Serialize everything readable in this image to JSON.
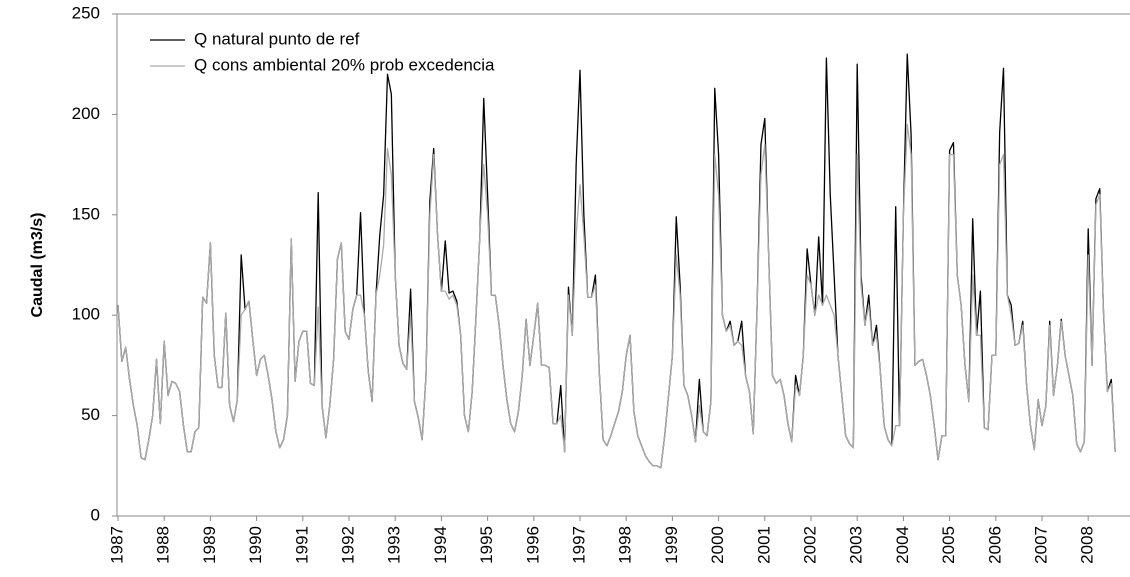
{
  "chart_data": {
    "type": "line",
    "y_label": "Caudal (m3/s)",
    "categories": [
      "1987",
      null,
      null,
      null,
      null,
      null,
      null,
      null,
      null,
      null,
      null,
      null,
      "1988",
      null,
      null,
      null,
      null,
      null,
      null,
      null,
      null,
      null,
      null,
      null,
      "1989",
      null,
      null,
      null,
      null,
      null,
      null,
      null,
      null,
      null,
      null,
      null,
      "1990",
      null,
      null,
      null,
      null,
      null,
      null,
      null,
      null,
      null,
      null,
      null,
      "1991",
      null,
      null,
      null,
      null,
      null,
      null,
      null,
      null,
      null,
      null,
      null,
      "1992",
      null,
      null,
      null,
      null,
      null,
      null,
      null,
      null,
      null,
      null,
      null,
      "1993",
      null,
      null,
      null,
      null,
      null,
      null,
      null,
      null,
      null,
      null,
      null,
      "1994",
      null,
      null,
      null,
      null,
      null,
      null,
      null,
      null,
      null,
      null,
      null,
      "1995",
      null,
      null,
      null,
      null,
      null,
      null,
      null,
      null,
      null,
      null,
      null,
      "1996",
      null,
      null,
      null,
      null,
      null,
      null,
      null,
      null,
      null,
      null,
      null,
      "1997",
      null,
      null,
      null,
      null,
      null,
      null,
      null,
      null,
      null,
      null,
      null,
      "1998",
      null,
      null,
      null,
      null,
      null,
      null,
      null,
      null,
      null,
      null,
      null,
      "1999",
      null,
      null,
      null,
      null,
      null,
      null,
      null,
      null,
      null,
      null,
      null,
      "2000",
      null,
      null,
      null,
      null,
      null,
      null,
      null,
      null,
      null,
      null,
      null,
      "2001",
      null,
      null,
      null,
      null,
      null,
      null,
      null,
      null,
      null,
      null,
      null,
      "2002",
      null,
      null,
      null,
      null,
      null,
      null,
      null,
      null,
      null,
      null,
      null,
      "2003",
      null,
      null,
      null,
      null,
      null,
      null,
      null,
      null,
      null,
      null,
      null,
      "2004",
      null,
      null,
      null,
      null,
      null,
      null,
      null,
      null,
      null,
      null,
      null,
      "2005",
      null,
      null,
      null,
      null,
      null,
      null,
      null,
      null,
      null,
      null,
      null,
      "2006",
      null,
      null,
      null,
      null,
      null,
      null,
      null,
      null,
      null,
      null,
      null,
      "2007",
      null,
      null,
      null,
      null,
      null,
      null,
      null,
      null,
      null,
      null,
      null,
      "2008",
      null,
      null,
      null,
      null,
      null,
      null,
      null
    ],
    "series": [
      {
        "name": "Q natural punto de ref",
        "color": "#000000",
        "values": [
          105,
          77,
          84,
          68,
          55,
          45,
          29,
          28,
          38,
          50,
          78,
          46,
          87,
          60,
          67,
          66,
          62,
          45,
          32,
          32,
          42,
          44,
          109,
          106,
          136,
          80,
          64,
          64,
          101,
          55,
          47,
          58,
          130,
          103,
          107,
          88,
          70,
          78,
          80,
          70,
          58,
          42,
          34,
          38,
          50,
          138,
          67,
          87,
          92,
          92,
          66,
          65,
          161,
          55,
          39,
          55,
          78,
          128,
          136,
          92,
          88,
          103,
          110,
          151,
          100,
          72,
          57,
          110,
          140,
          160,
          220,
          210,
          120,
          85,
          76,
          73,
          113,
          57,
          49,
          38,
          70,
          157,
          183,
          140,
          112,
          137,
          111,
          112,
          107,
          90,
          50,
          42,
          62,
          100,
          140,
          208,
          160,
          110,
          110,
          95,
          75,
          58,
          46,
          42,
          52,
          70,
          98,
          75,
          90,
          106,
          75,
          75,
          74,
          46,
          46,
          65,
          32,
          114,
          90,
          175,
          222,
          150,
          109,
          109,
          120,
          72,
          38,
          35,
          40,
          46,
          52,
          62,
          80,
          90,
          52,
          40,
          35,
          30,
          27,
          25,
          25,
          24,
          40,
          60,
          80,
          149,
          115,
          65,
          60,
          50,
          37,
          68,
          42,
          40,
          57,
          213,
          180,
          100,
          92,
          97,
          85,
          87,
          97,
          70,
          62,
          41,
          105,
          185,
          198,
          130,
          70,
          66,
          68,
          60,
          46,
          37,
          70,
          60,
          80,
          133,
          115,
          100,
          139,
          105,
          228,
          160,
          120,
          80,
          60,
          40,
          36,
          34,
          225,
          120,
          95,
          110,
          85,
          95,
          72,
          45,
          38,
          35,
          154,
          45,
          150,
          230,
          190,
          75,
          77,
          78,
          70,
          60,
          45,
          28,
          40,
          40,
          182,
          186,
          120,
          105,
          75,
          57,
          148,
          90,
          112,
          44,
          43,
          80,
          80,
          191,
          223,
          110,
          105,
          85,
          86,
          97,
          65,
          45,
          33,
          58,
          45,
          55,
          97,
          60,
          75,
          98,
          80,
          70,
          60,
          36,
          32,
          37,
          143,
          75,
          158,
          163,
          100,
          62,
          68,
          32
        ]
      },
      {
        "name": "Q cons ambiental 20% prob excedencia",
        "color": "#aaaaaa",
        "values": [
          105,
          77,
          84,
          68,
          55,
          45,
          29,
          28,
          38,
          50,
          78,
          46,
          87,
          60,
          67,
          66,
          62,
          45,
          32,
          32,
          42,
          44,
          109,
          106,
          136,
          80,
          64,
          64,
          101,
          55,
          47,
          58,
          100,
          103,
          107,
          88,
          70,
          78,
          80,
          70,
          58,
          42,
          34,
          38,
          50,
          138,
          67,
          87,
          92,
          92,
          66,
          65,
          104,
          55,
          39,
          55,
          78,
          128,
          136,
          92,
          88,
          103,
          110,
          110,
          100,
          72,
          57,
          110,
          120,
          135,
          183,
          170,
          120,
          85,
          76,
          73,
          100,
          57,
          49,
          38,
          70,
          150,
          180,
          140,
          112,
          112,
          108,
          110,
          105,
          90,
          50,
          42,
          62,
          100,
          140,
          175,
          150,
          110,
          110,
          95,
          75,
          58,
          46,
          42,
          52,
          70,
          98,
          75,
          90,
          106,
          75,
          75,
          74,
          46,
          46,
          50,
          32,
          110,
          90,
          140,
          165,
          140,
          109,
          109,
          115,
          72,
          38,
          35,
          40,
          46,
          52,
          62,
          80,
          90,
          52,
          40,
          35,
          30,
          27,
          25,
          25,
          24,
          40,
          60,
          80,
          130,
          110,
          65,
          60,
          50,
          37,
          55,
          42,
          40,
          57,
          180,
          160,
          100,
          92,
          95,
          85,
          87,
          85,
          70,
          62,
          41,
          105,
          170,
          185,
          130,
          70,
          66,
          68,
          60,
          46,
          37,
          65,
          60,
          80,
          120,
          115,
          100,
          110,
          105,
          110,
          105,
          100,
          80,
          60,
          40,
          36,
          34,
          180,
          115,
          95,
          105,
          85,
          90,
          72,
          45,
          38,
          35,
          45,
          45,
          150,
          195,
          180,
          75,
          77,
          78,
          70,
          60,
          45,
          28,
          40,
          40,
          180,
          180,
          120,
          105,
          75,
          57,
          120,
          90,
          90,
          44,
          43,
          80,
          80,
          175,
          180,
          110,
          100,
          85,
          86,
          95,
          65,
          45,
          33,
          58,
          45,
          55,
          95,
          60,
          75,
          97,
          80,
          70,
          60,
          36,
          32,
          37,
          130,
          75,
          155,
          160,
          100,
          62,
          66,
          32
        ]
      }
    ],
    "ylim": [
      0,
      250
    ],
    "yticks": [
      0,
      50,
      100,
      150,
      200,
      250
    ],
    "grid": false
  }
}
